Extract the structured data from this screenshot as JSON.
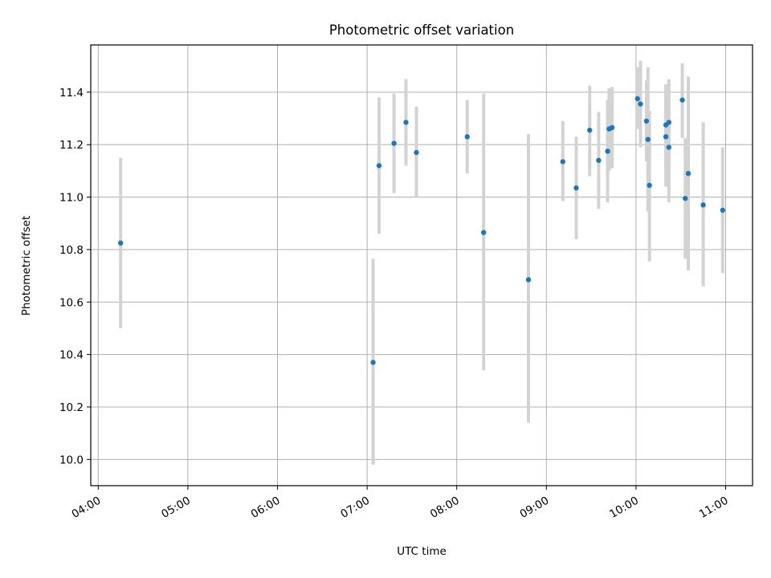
{
  "chart_data": {
    "type": "scatter",
    "title": "Photometric offset variation",
    "xlabel": "UTC time",
    "ylabel": "Photometric offset",
    "xlim": [
      "03:55",
      "11:18"
    ],
    "ylim": [
      9.9,
      11.58
    ],
    "x_ticks": [
      "04:00",
      "05:00",
      "06:00",
      "07:00",
      "08:00",
      "09:00",
      "10:00",
      "11:00"
    ],
    "y_ticks": [
      "10.0",
      "10.2",
      "10.4",
      "10.6",
      "10.8",
      "11.0",
      "11.2",
      "11.4"
    ],
    "grid": true,
    "marker_color": "#1f77b4",
    "errorbar_color": "#d3d3d3",
    "points": [
      {
        "t": "04:15",
        "y": 10.825,
        "ylo": 10.5,
        "yhi": 11.15
      },
      {
        "t": "07:04",
        "y": 10.37,
        "ylo": 9.98,
        "yhi": 10.765
      },
      {
        "t": "07:08",
        "y": 11.12,
        "ylo": 10.86,
        "yhi": 11.38
      },
      {
        "t": "07:18",
        "y": 11.205,
        "ylo": 11.015,
        "yhi": 11.395
      },
      {
        "t": "07:26",
        "y": 11.285,
        "ylo": 11.12,
        "yhi": 11.45
      },
      {
        "t": "07:33",
        "y": 11.17,
        "ylo": 11.0,
        "yhi": 11.345
      },
      {
        "t": "08:07",
        "y": 11.23,
        "ylo": 11.09,
        "yhi": 11.37
      },
      {
        "t": "08:18",
        "y": 10.865,
        "ylo": 10.34,
        "yhi": 11.395
      },
      {
        "t": "08:48",
        "y": 10.685,
        "ylo": 10.14,
        "yhi": 11.24
      },
      {
        "t": "09:11",
        "y": 11.135,
        "ylo": 10.985,
        "yhi": 11.29
      },
      {
        "t": "09:20",
        "y": 11.035,
        "ylo": 10.84,
        "yhi": 11.23
      },
      {
        "t": "09:29",
        "y": 11.255,
        "ylo": 11.08,
        "yhi": 11.425
      },
      {
        "t": "09:35",
        "y": 11.14,
        "ylo": 10.955,
        "yhi": 11.325
      },
      {
        "t": "09:41",
        "y": 11.175,
        "ylo": 10.98,
        "yhi": 11.37
      },
      {
        "t": "09:42",
        "y": 11.26,
        "ylo": 11.1,
        "yhi": 11.415
      },
      {
        "t": "09:44",
        "y": 11.265,
        "ylo": 11.11,
        "yhi": 11.42
      },
      {
        "t": "10:01",
        "y": 11.375,
        "ylo": 11.26,
        "yhi": 11.495
      },
      {
        "t": "10:03",
        "y": 11.355,
        "ylo": 11.19,
        "yhi": 11.52
      },
      {
        "t": "10:07",
        "y": 11.29,
        "ylo": 11.135,
        "yhi": 11.445
      },
      {
        "t": "10:08",
        "y": 11.22,
        "ylo": 10.945,
        "yhi": 11.495
      },
      {
        "t": "10:09",
        "y": 11.045,
        "ylo": 10.755,
        "yhi": 11.33
      },
      {
        "t": "10:20",
        "y": 11.275,
        "ylo": 11.12,
        "yhi": 11.43
      },
      {
        "t": "10:20",
        "y": 11.23,
        "ylo": 11.04,
        "yhi": 11.42
      },
      {
        "t": "10:22",
        "y": 11.285,
        "ylo": 11.12,
        "yhi": 11.45
      },
      {
        "t": "10:22",
        "y": 11.19,
        "ylo": 10.98,
        "yhi": 11.4
      },
      {
        "t": "10:31",
        "y": 11.37,
        "ylo": 11.225,
        "yhi": 11.51
      },
      {
        "t": "10:33",
        "y": 10.995,
        "ylo": 10.765,
        "yhi": 11.225
      },
      {
        "t": "10:35",
        "y": 11.09,
        "ylo": 10.72,
        "yhi": 11.46
      },
      {
        "t": "10:45",
        "y": 10.97,
        "ylo": 10.66,
        "yhi": 11.285
      },
      {
        "t": "10:58",
        "y": 10.95,
        "ylo": 10.71,
        "yhi": 11.19
      }
    ]
  }
}
